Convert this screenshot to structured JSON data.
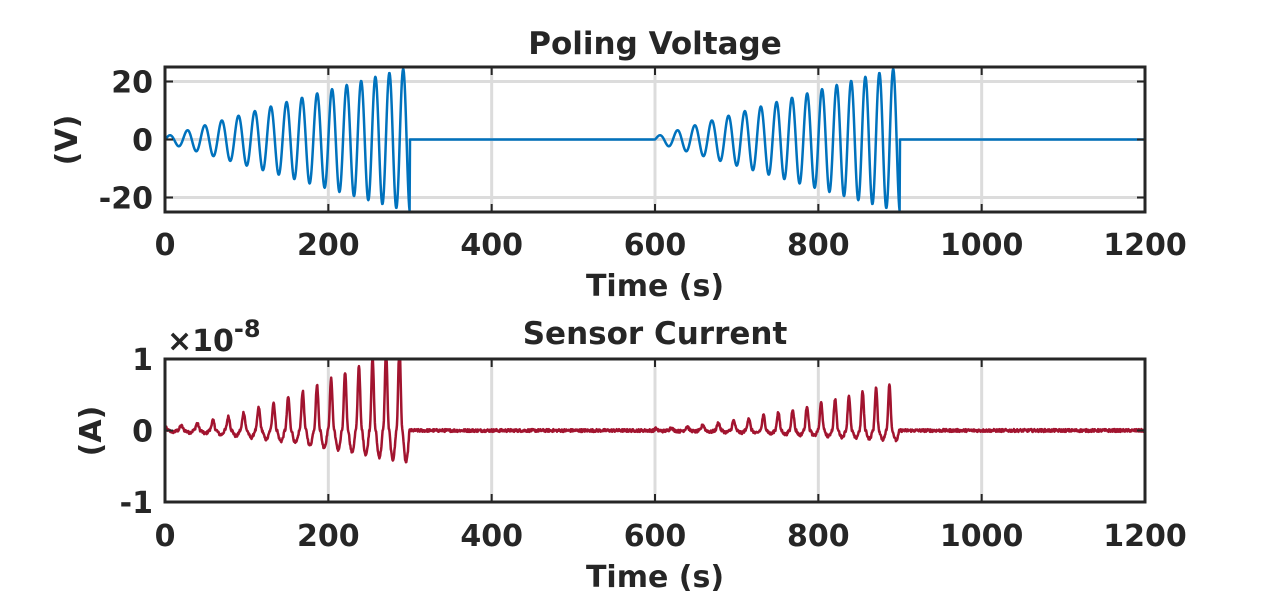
{
  "chart_data": [
    {
      "type": "line",
      "title": "Poling Voltage",
      "xlabel": "Time (s)",
      "ylabel": "(V)",
      "xlim": [
        0,
        1200
      ],
      "ylim": [
        -25,
        25
      ],
      "xticks": [
        0,
        200,
        400,
        600,
        800,
        1000,
        1200
      ],
      "xtick_labels": [
        "0",
        "200",
        "400",
        "600",
        "800",
        "1000",
        "1200"
      ],
      "yticks": [
        -20,
        0,
        20
      ],
      "ytick_labels": [
        "-20",
        "0",
        "20"
      ],
      "grid": "x",
      "color": "#0072BD",
      "series": [
        {
          "description_pattern": "chirped sinusoid bursts",
          "bursts": [
            {
              "t_start": 0,
              "t_end": 300,
              "amp_start": 1,
              "amp_end": 25,
              "freq_start": 0.045,
              "freq_end": 0.06
            },
            {
              "t_start": 600,
              "t_end": 900,
              "amp_start": 1,
              "amp_end": 25,
              "freq_start": 0.045,
              "freq_end": 0.06
            }
          ],
          "baseline": 0
        }
      ]
    },
    {
      "type": "line",
      "title": "Sensor Current",
      "xlabel": "Time (s)",
      "ylabel": "(A)",
      "exponent_prefix": "×10",
      "exponent": "-8",
      "xlim": [
        0,
        1200
      ],
      "ylim": [
        -1,
        1
      ],
      "xticks": [
        0,
        200,
        400,
        600,
        800,
        1000,
        1200
      ],
      "xtick_labels": [
        "0",
        "200",
        "400",
        "600",
        "800",
        "1000",
        "1200"
      ],
      "yticks": [
        -1,
        0,
        1
      ],
      "ytick_labels": [
        "-1",
        "0",
        "1"
      ],
      "grid": "x",
      "color": "#A2142F",
      "series": [
        {
          "bursts": [
            {
              "t_start": 0,
              "t_end": 300,
              "amp_start": 0.05,
              "amp_end": 1.3,
              "neg_ratio": 0.35
            },
            {
              "t_start": 600,
              "t_end": 900,
              "amp_start": 0.03,
              "amp_end": 0.7,
              "neg_ratio": 0.2
            }
          ],
          "baseline": 0,
          "noise": 0.02
        }
      ]
    }
  ]
}
